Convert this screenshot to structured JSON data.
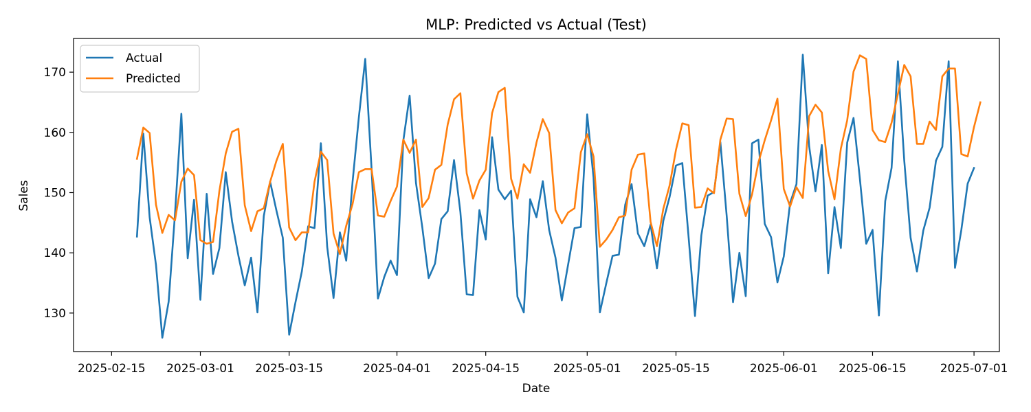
{
  "chart_data": {
    "type": "line",
    "title": "MLP: Predicted vs Actual (Test)",
    "xlabel": "Date",
    "ylabel": "Sales",
    "x_start": "2025-02-19",
    "x_end": "2025-06-29",
    "xlim": [
      "2025-02-09",
      "2025-07-05"
    ],
    "ylim": [
      123.6,
      175.6
    ],
    "x_ticks": [
      "2025-02-15",
      "2025-03-01",
      "2025-03-15",
      "2025-04-01",
      "2025-04-15",
      "2025-05-01",
      "2025-05-15",
      "2025-06-01",
      "2025-06-15",
      "2025-07-01"
    ],
    "y_ticks": [
      130,
      140,
      150,
      160,
      170
    ],
    "grid": false,
    "legend": "top-left",
    "series": [
      {
        "name": "Actual",
        "color": "#1f77b4",
        "values": [
          142.7,
          159.8,
          145.9,
          138.0,
          125.9,
          131.9,
          146.5,
          163.1,
          139.1,
          148.8,
          132.2,
          149.8,
          136.5,
          140.8,
          153.4,
          145.2,
          139.5,
          134.6,
          139.2,
          130.1,
          146.1,
          151.8,
          147.0,
          142.5,
          126.4,
          131.8,
          136.9,
          144.4,
          144.1,
          158.2,
          141.0,
          132.5,
          143.4,
          138.7,
          151.8,
          162.6,
          172.2,
          153.9,
          132.4,
          136.0,
          138.7,
          136.3,
          158.6,
          166.1,
          151.6,
          144.2,
          135.8,
          138.2,
          145.6,
          146.9,
          155.4,
          146.8,
          133.1,
          133.0,
          147.1,
          142.2,
          159.2,
          150.5,
          148.9,
          150.3,
          132.7,
          130.1,
          148.9,
          145.9,
          151.9,
          143.8,
          139.2,
          132.1,
          138.1,
          144.1,
          144.3,
          163.0,
          152.5,
          130.1,
          134.9,
          139.5,
          139.7,
          148.0,
          151.4,
          143.2,
          141.1,
          144.7,
          137.4,
          145.3,
          149.3,
          154.5,
          154.9,
          142.5,
          129.5,
          142.9,
          149.5,
          150.1,
          158.4,
          146.1,
          131.8,
          140.0,
          132.8,
          158.2,
          158.8,
          144.8,
          142.6,
          135.1,
          139.4,
          148.3,
          151.4,
          172.9,
          157.7,
          150.2,
          157.9,
          136.6,
          147.6,
          140.8,
          158.3,
          162.4,
          152.3,
          141.5,
          143.8,
          129.6,
          148.6,
          154.1,
          171.8,
          155.3,
          142.5,
          136.9,
          143.7,
          147.5,
          155.3,
          157.6,
          171.8,
          137.5,
          143.8,
          151.5,
          154.1
        ]
      },
      {
        "name": "Predicted",
        "color": "#ff7f0e",
        "values": [
          155.6,
          160.8,
          159.9,
          148.0,
          143.3,
          146.3,
          145.4,
          151.8,
          154.0,
          152.9,
          142.1,
          141.5,
          141.8,
          150.3,
          156.5,
          160.1,
          160.6,
          147.9,
          143.6,
          146.9,
          147.4,
          151.8,
          155.3,
          158.1,
          144.2,
          142.1,
          143.4,
          143.4,
          151.8,
          156.8,
          155.4,
          143.2,
          139.8,
          144.5,
          148.1,
          153.4,
          153.9,
          153.9,
          146.2,
          146.0,
          148.6,
          151.0,
          158.8,
          156.6,
          158.8,
          147.6,
          149.1,
          153.8,
          154.6,
          161.3,
          165.5,
          166.5,
          153.2,
          149.0,
          152.0,
          153.8,
          163.2,
          166.7,
          167.4,
          152.3,
          149.0,
          154.7,
          153.3,
          158.3,
          162.2,
          159.9,
          147.1,
          144.9,
          146.7,
          147.4,
          156.7,
          159.7,
          156.0,
          141.0,
          142.2,
          143.8,
          145.9,
          146.2,
          153.8,
          156.3,
          156.5,
          145.1,
          141.1,
          147.3,
          151.2,
          157.1,
          161.5,
          161.2,
          147.5,
          147.6,
          150.7,
          149.9,
          158.8,
          162.3,
          162.2,
          149.8,
          146.1,
          149.7,
          155.0,
          158.7,
          162.0,
          165.6,
          150.6,
          147.7,
          150.9,
          149.1,
          162.7,
          164.6,
          163.3,
          153.6,
          148.9,
          157.3,
          162.0,
          170.1,
          172.8,
          172.2,
          160.4,
          158.7,
          158.4,
          161.6,
          166.4,
          171.2,
          169.3,
          158.1,
          158.1,
          161.8,
          160.4,
          169.3,
          170.6,
          170.6,
          156.4,
          156.0,
          160.9,
          165.0
        ]
      }
    ]
  }
}
